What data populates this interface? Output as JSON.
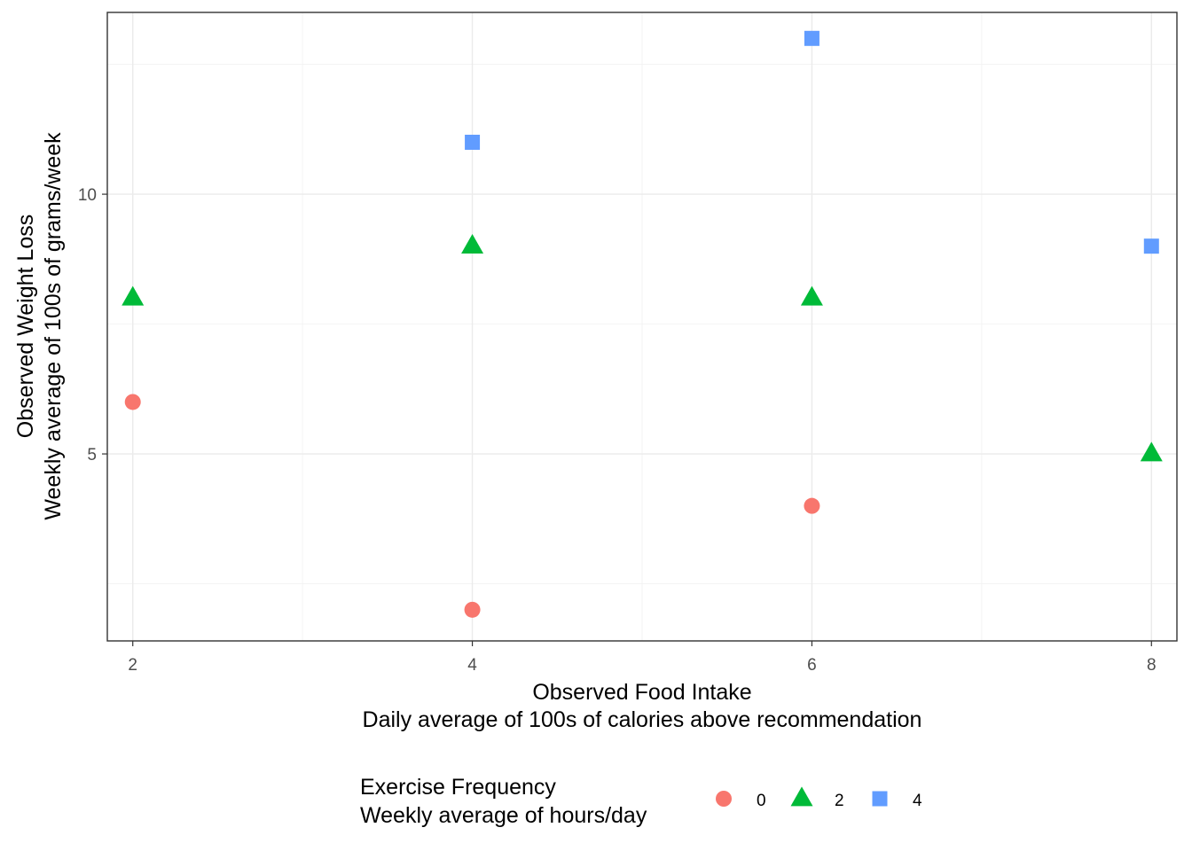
{
  "chart_data": {
    "type": "scatter",
    "title": "",
    "xlabel": [
      "Observed Food Intake",
      "Daily average of 100s of calories above recommendation"
    ],
    "ylabel": [
      "Observed Weight Loss",
      "Weekly average of 100s of grams/week"
    ],
    "xlim": [
      1.85,
      8.15
    ],
    "ylim": [
      1.4,
      13.5
    ],
    "x_ticks": [
      2,
      4,
      6,
      8
    ],
    "y_ticks": [
      5,
      10
    ],
    "grid": true,
    "legend": {
      "title": [
        "Exercise Frequency",
        "Weekly average of hours/day"
      ],
      "position": "bottom"
    },
    "series": [
      {
        "name": "0",
        "shape": "circle",
        "color": "#F8766D",
        "x": [
          2,
          4,
          6
        ],
        "y": [
          6,
          2,
          4
        ]
      },
      {
        "name": "2",
        "shape": "triangle",
        "color": "#00BA38",
        "x": [
          2,
          4,
          6,
          8
        ],
        "y": [
          8,
          9,
          8,
          5
        ]
      },
      {
        "name": "4",
        "shape": "square",
        "color": "#619CFF",
        "x": [
          4,
          6,
          8
        ],
        "y": [
          11,
          13,
          9
        ]
      }
    ]
  }
}
